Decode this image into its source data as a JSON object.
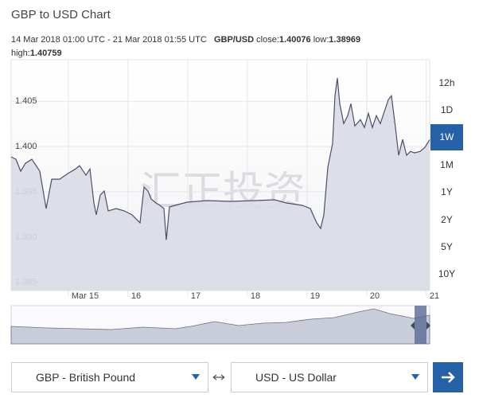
{
  "header": {
    "title": "GBP to USD Chart",
    "range": "14 Mar 2018 01:00 UTC - 21 Mar 2018 01:55 UTC",
    "pair": "GBP/USD",
    "close_label": "close:",
    "close": 1.40076,
    "low_label": "low:",
    "low": 1.38969,
    "high_label": "high:",
    "high": 1.40759
  },
  "watermark": "汇正投资",
  "range_buttons": [
    "12h",
    "1D",
    "1W",
    "1M",
    "1Y",
    "2Y",
    "5Y",
    "10Y"
  ],
  "active_range_index": 2,
  "converter": {
    "from": "GBP - British Pound",
    "to": "USD - US Dollar"
  },
  "chart_data": {
    "type": "area",
    "color": "#4b5068",
    "fill": "#d9dbe5",
    "grid": true,
    "x": [
      14.042,
      14.122,
      14.202,
      14.282,
      14.388,
      14.522,
      14.628,
      14.722,
      14.855,
      14.988,
      15.122,
      15.188,
      15.295,
      15.362,
      15.428,
      15.468,
      15.535,
      15.602,
      15.668,
      15.802,
      15.935,
      16.068,
      16.202,
      16.268,
      16.335,
      16.388,
      16.468,
      16.535,
      16.602,
      16.642,
      16.695,
      16.788,
      16.988,
      17.322,
      17.722,
      18.122,
      18.455,
      18.655,
      18.922,
      19.055,
      19.162,
      19.228,
      19.282,
      19.348,
      19.428,
      19.468,
      19.508,
      19.548,
      19.615,
      19.682,
      19.735,
      19.802,
      19.895,
      19.962,
      20.028,
      20.095,
      20.162,
      20.228,
      20.295,
      20.362,
      20.415,
      20.482,
      20.535,
      20.602,
      20.668,
      20.735,
      20.802,
      20.895,
      20.975,
      21.055
    ],
    "values": [
      1.39886,
      1.3986,
      1.39728,
      1.39816,
      1.3986,
      1.39728,
      1.39316,
      1.3964,
      1.3964,
      1.39702,
      1.39754,
      1.3979,
      1.39684,
      1.39754,
      1.39377,
      1.39246,
      1.39465,
      1.39509,
      1.3929,
      1.39316,
      1.3929,
      1.39246,
      1.39158,
      1.39553,
      1.39509,
      1.39421,
      1.39377,
      1.39351,
      1.39316,
      1.38969,
      1.39333,
      1.39351,
      1.39386,
      1.39404,
      1.39395,
      1.39404,
      1.39412,
      1.39377,
      1.39351,
      1.39316,
      1.39158,
      1.39096,
      1.39246,
      1.39772,
      1.40035,
      1.40561,
      1.40759,
      1.40474,
      1.40254,
      1.40342,
      1.40474,
      1.40228,
      1.40298,
      1.40211,
      1.40368,
      1.40211,
      1.40342,
      1.40254,
      1.40386,
      1.40518,
      1.40561,
      1.40211,
      1.39904,
      1.40079,
      1.39904,
      1.39947,
      1.3993,
      1.39947,
      1.39991,
      1.40076
    ],
    "xlim": [
      14.042,
      21.055
    ],
    "xticks": [
      {
        "value": 15,
        "label": "Mar 15"
      },
      16,
      17,
      18,
      19,
      20,
      21
    ],
    "ylim": [
      1.3841,
      1.4096
    ],
    "yticks": [
      1.385,
      {
        "value": 1.39,
        "label": "1.390"
      },
      1.395,
      {
        "value": 1.4,
        "label": "1.400"
      },
      1.405
    ]
  }
}
